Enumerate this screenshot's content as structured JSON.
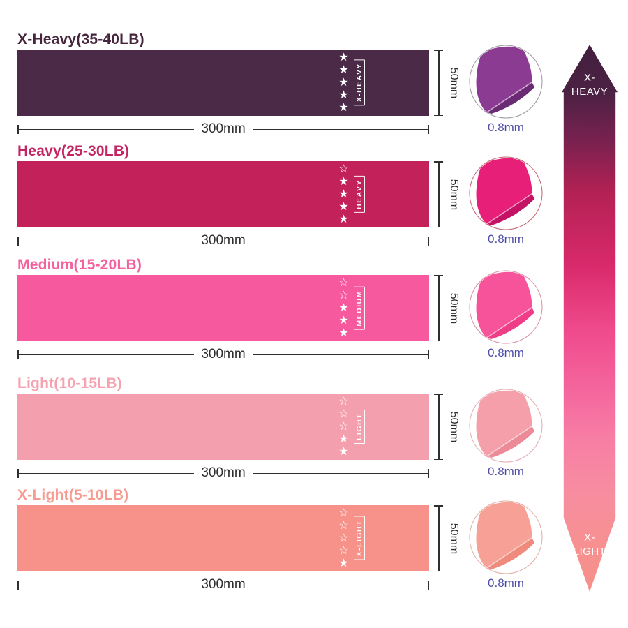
{
  "sections": [
    {
      "title": "X-Heavy(35-40LB)",
      "title_color": "#46253f",
      "band_color": "#4a2a47",
      "band_label": "X-HEAVY",
      "stars": "★\n★\n★\n★\n★",
      "stars_filled": 5,
      "stars_total": 5,
      "width_label": "300mm",
      "height_label": "50mm",
      "thickness_label": "0.8mm",
      "thumb": {
        "main": "#8b3b92",
        "under": "#6b2a74",
        "fold": "#d9b8dd",
        "ring": "#9b93a0"
      }
    },
    {
      "title": "Heavy(25-30LB)",
      "title_color": "#c42460",
      "band_color": "#c22159",
      "band_label": "HEAVY",
      "stars": "☆\n★\n★\n★\n★",
      "stars_filled": 4,
      "stars_total": 5,
      "width_label": "300mm",
      "height_label": "50mm",
      "thickness_label": "0.8mm",
      "thumb": {
        "main": "#e81f78",
        "under": "#c41365",
        "fold": "#f6aed0",
        "ring": "#c4606f"
      }
    },
    {
      "title": "Medium(15-20LB)",
      "title_color": "#f4619f",
      "band_color": "#f6599d",
      "band_label": "MEDIUM",
      "stars": "☆\n☆\n★\n★\n★",
      "stars_filled": 3,
      "stars_total": 5,
      "width_label": "300mm",
      "height_label": "50mm",
      "thickness_label": "0.8mm",
      "thumb": {
        "main": "#f7539a",
        "under": "#ef3e87",
        "fold": "#fcc3dc",
        "ring": "#d88ca1"
      }
    },
    {
      "title": "Light(10-15LB)",
      "title_color": "#f6a3b1",
      "band_color": "#f49fae",
      "band_label": "LIGHT",
      "stars": "☆\n☆\n☆\n★\n★",
      "stars_filled": 2,
      "stars_total": 5,
      "width_label": "300mm",
      "height_label": "50mm",
      "thickness_label": "0.8mm",
      "thumb": {
        "main": "#f49fa9",
        "under": "#ec8a98",
        "fold": "#fbd9de",
        "ring": "#e0abb2"
      }
    },
    {
      "title": "X-Light(5-10LB)",
      "title_color": "#f79a8f",
      "band_color": "#f69289",
      "band_label": "X-LIGHT",
      "stars": "☆\n☆\n☆\n☆\n★",
      "stars_filled": 1,
      "stars_total": 5,
      "width_label": "300mm",
      "height_label": "50mm",
      "thickness_label": "0.8mm",
      "thumb": {
        "main": "#f7a096",
        "under": "#ef8a7d",
        "fold": "#fcdcd5",
        "ring": "#e0aba3"
      }
    }
  ],
  "scale_arrow": {
    "top": [
      "X-",
      "HEAVY"
    ],
    "bottom": [
      "X-",
      "LIGHT"
    ],
    "gradient_stops": [
      "#42203e 0%",
      "#4c2143 9%",
      "#7b2150 18%",
      "#b32153 27%",
      "#d8296a 40%",
      "#ef4a8c 52%",
      "#f4639c 62%",
      "#f77ea5 72%",
      "#f78da0 82%",
      "#f79190 92%",
      "#f69089 100%"
    ]
  }
}
